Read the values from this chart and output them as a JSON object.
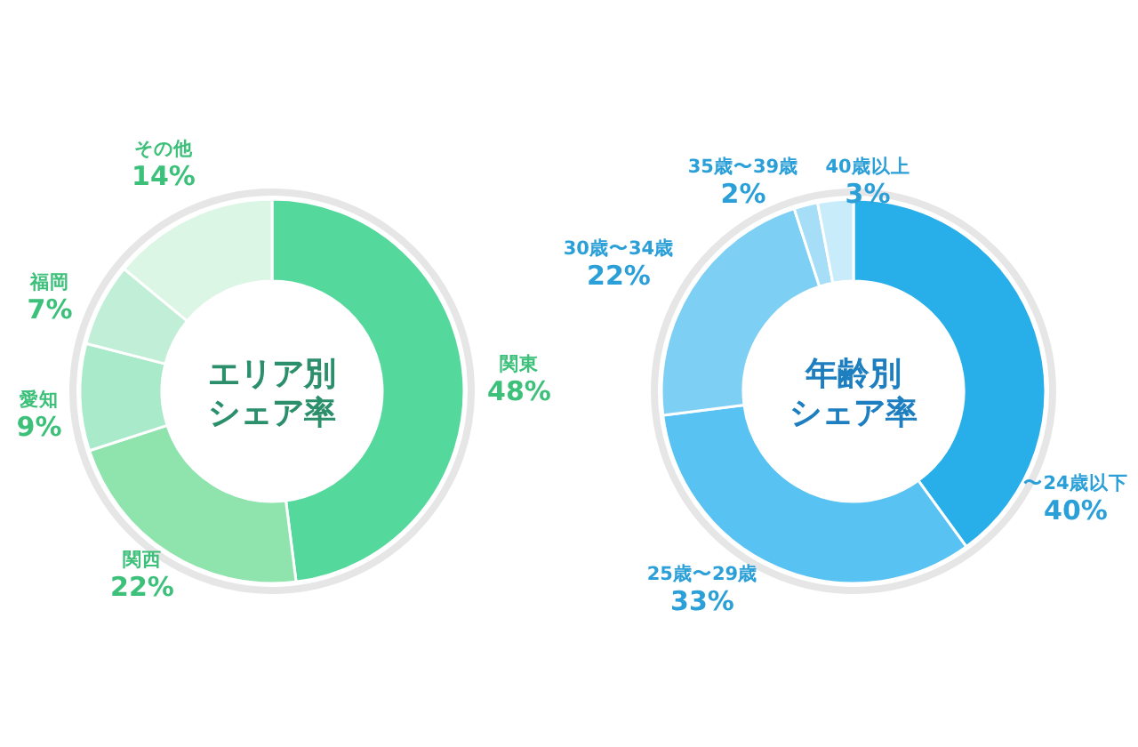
{
  "chart_data": [
    {
      "type": "donut",
      "title": "エリア別シェア率",
      "categories": [
        "関東",
        "関西",
        "愛知",
        "福岡",
        "その他"
      ],
      "values": [
        48,
        22,
        9,
        7,
        14
      ],
      "colors": [
        "#55d89c",
        "#8fe3ad",
        "#a9eacb",
        "#c0eed6",
        "#dcf6e6"
      ],
      "value_labels": [
        "48%",
        "22%",
        "9%",
        "7%",
        "14%"
      ]
    },
    {
      "type": "donut",
      "title": "年齢別シェア率",
      "categories": [
        "〜24歳以下",
        "25歳〜29歳",
        "30歳〜34歳",
        "35歳〜39歳",
        "40歳以上"
      ],
      "values": [
        40,
        33,
        22,
        2,
        3
      ],
      "colors": [
        "#28aee8",
        "#58c2f2",
        "#7dcff4",
        "#a6ddf7",
        "#c9ecfb"
      ],
      "value_labels": [
        "40%",
        "33%",
        "22%",
        "2%",
        "3%"
      ]
    }
  ]
}
